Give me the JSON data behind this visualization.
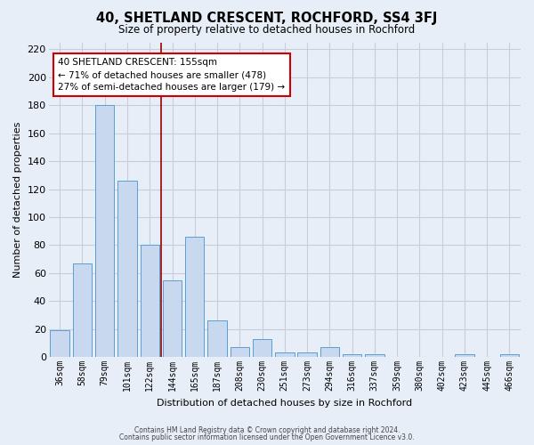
{
  "title": "40, SHETLAND CRESCENT, ROCHFORD, SS4 3FJ",
  "subtitle": "Size of property relative to detached houses in Rochford",
  "xlabel": "Distribution of detached houses by size in Rochford",
  "ylabel": "Number of detached properties",
  "bar_labels": [
    "36sqm",
    "58sqm",
    "79sqm",
    "101sqm",
    "122sqm",
    "144sqm",
    "165sqm",
    "187sqm",
    "208sqm",
    "230sqm",
    "251sqm",
    "273sqm",
    "294sqm",
    "316sqm",
    "337sqm",
    "359sqm",
    "380sqm",
    "402sqm",
    "423sqm",
    "445sqm",
    "466sqm"
  ],
  "bar_values": [
    19,
    67,
    180,
    126,
    80,
    55,
    86,
    26,
    7,
    13,
    3,
    3,
    7,
    2,
    2,
    0,
    0,
    0,
    2,
    0,
    2
  ],
  "bar_color": "#c8d8ee",
  "bar_edge_color": "#5a9fd4",
  "ylim": [
    0,
    225
  ],
  "yticks": [
    0,
    20,
    40,
    60,
    80,
    100,
    120,
    140,
    160,
    180,
    200,
    220
  ],
  "vline_x": 4.5,
  "vline_color": "#990000",
  "annotation_text": "40 SHETLAND CRESCENT: 155sqm\n← 71% of detached houses are smaller (478)\n27% of semi-detached houses are larger (179) →",
  "annotation_box_color": "#ffffff",
  "annotation_box_edge": "#cc0000",
  "background_color": "#e8eef8",
  "grid_color": "#c8cdd8",
  "footer1": "Contains HM Land Registry data © Crown copyright and database right 2024.",
  "footer2": "Contains public sector information licensed under the Open Government Licence v3.0."
}
